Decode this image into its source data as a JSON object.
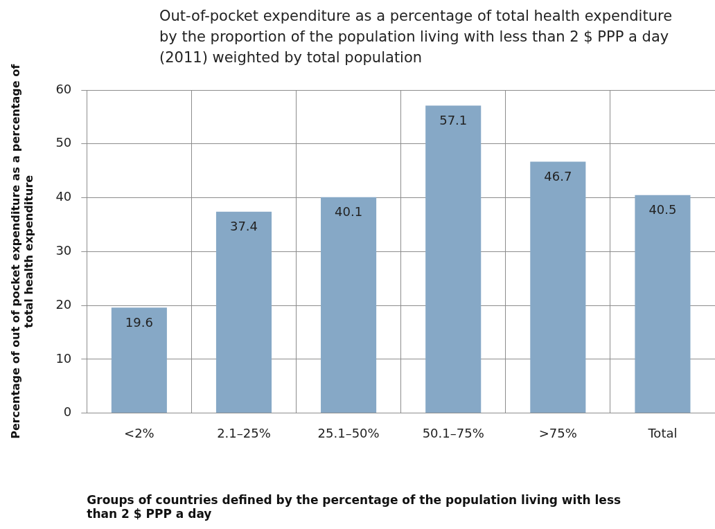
{
  "chart_data": {
    "type": "bar",
    "title": "Out-of-pocket expenditure as a percentage of total health expenditure by the proportion of the population living with less than 2 $ PPP a day (2011) weighted by total population",
    "xlabel": "Groups of countries defined by the percentage of the population living with less than 2 $ PPP a day",
    "ylabel": "Percentage of out of pocket expenditure as a percentage of total health expenditure",
    "categories": [
      "<2%",
      "2.1–25%",
      "25.1–50%",
      "50.1–75%",
      ">75%",
      "Total"
    ],
    "values": [
      19.6,
      37.4,
      40.1,
      57.1,
      46.7,
      40.5
    ],
    "color": "#86a8c6",
    "ylim": [
      0,
      60
    ],
    "yticks": [
      0,
      10,
      20,
      30,
      40,
      50,
      60
    ],
    "grid": true,
    "data_labels": true
  }
}
